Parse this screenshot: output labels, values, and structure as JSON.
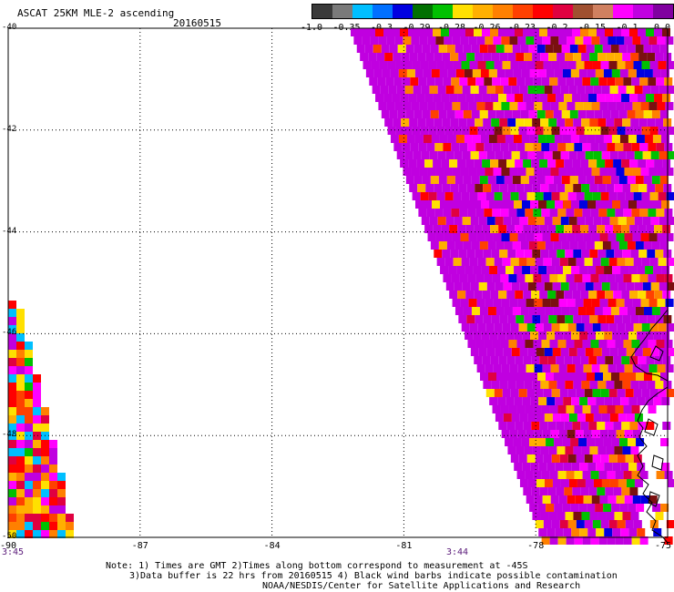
{
  "title": "ASCAT 25KM MLE-2 ascending",
  "date": "20160515",
  "legend": {
    "colors": [
      "#3a3a3a",
      "#7a7a7a",
      "#00bfff",
      "#0070ff",
      "#0000e0",
      "#007000",
      "#00c000",
      "#ffe000",
      "#ffb000",
      "#ff8000",
      "#ff4000",
      "#ff0000",
      "#e00040",
      "#a05030",
      "#d08060",
      "#ff00ff",
      "#c000e0",
      "#8000a0"
    ],
    "labels": [
      "-1.0",
      "-0.35",
      "-0.3",
      "-0.29",
      "-0.28",
      "-0.26",
      "-0.23",
      "-0.2",
      "-0.15",
      "-0.1",
      "0.0"
    ]
  },
  "axes": {
    "lon_labels": [
      "-90",
      "-87",
      "-84",
      "-81",
      "-78",
      "-75"
    ],
    "lat_labels": [
      "-40",
      "-42",
      "-44",
      "-46",
      "-48",
      "-50"
    ],
    "lon_range": [
      -90,
      -75
    ],
    "lat_range": [
      -40,
      -50
    ],
    "gridlines": "dotted"
  },
  "times": {
    "left": "3:45",
    "mid": "3:44"
  },
  "notes": [
    "Note: 1) Times are GMT 2)Times along bottom correspond to measurement at -45S",
    "3)Data buffer is 22 hrs from 20160515 4) Black wind barbs indicate possible contamination",
    "NOAA/NESDIS/Center for Satellite Applications and Research"
  ]
}
